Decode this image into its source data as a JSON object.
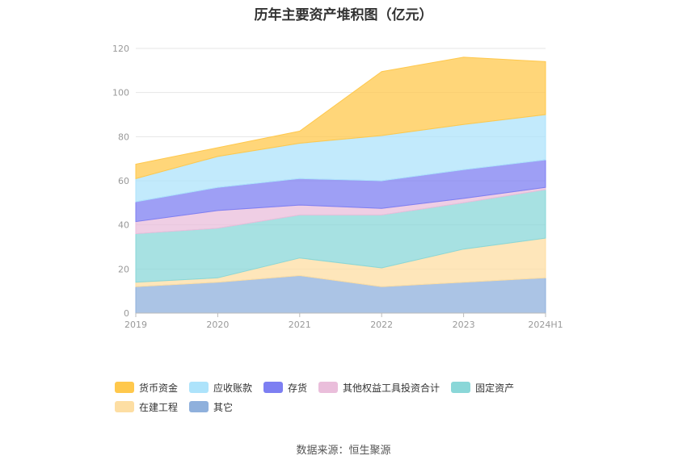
{
  "chart_data": {
    "type": "area",
    "stacked": true,
    "title": "历年主要资产堆积图（亿元）",
    "source": "数据来源：恒生聚源",
    "categories": [
      "2019",
      "2020",
      "2021",
      "2022",
      "2023",
      "2024H1"
    ],
    "ylim": [
      0,
      120
    ],
    "yticks": [
      "0",
      "20",
      "40",
      "60",
      "80",
      "100",
      "120"
    ],
    "grid": true,
    "legend_position": "bottom",
    "series": [
      {
        "name": "其它",
        "color": "#8fb0dc",
        "values": [
          12,
          14,
          17,
          12,
          14,
          16
        ]
      },
      {
        "name": "在建工程",
        "color": "#fddea3",
        "values": [
          2,
          2,
          8,
          8.5,
          15,
          18
        ]
      },
      {
        "name": "固定资产",
        "color": "#8ad7d8",
        "values": [
          22,
          22.5,
          19.5,
          24,
          21,
          22
        ]
      },
      {
        "name": "其他权益工具投资合计",
        "color": "#eabedb",
        "values": [
          5.5,
          8,
          4.5,
          3,
          2,
          1
        ]
      },
      {
        "name": "存货",
        "color": "#7d7ff2",
        "values": [
          9,
          10.5,
          12,
          12.5,
          13,
          12.5
        ]
      },
      {
        "name": "应收账款",
        "color": "#ade3fb",
        "values": [
          10.5,
          14,
          16,
          20.5,
          20.5,
          20.5
        ]
      },
      {
        "name": "货币资金",
        "color": "#ffc84c",
        "values": [
          6.5,
          4,
          5.5,
          29,
          30.5,
          24
        ]
      }
    ],
    "legend_order": [
      "货币资金",
      "应收账款",
      "存货",
      "其他权益工具投资合计",
      "固定资产",
      "在建工程",
      "其它"
    ]
  }
}
